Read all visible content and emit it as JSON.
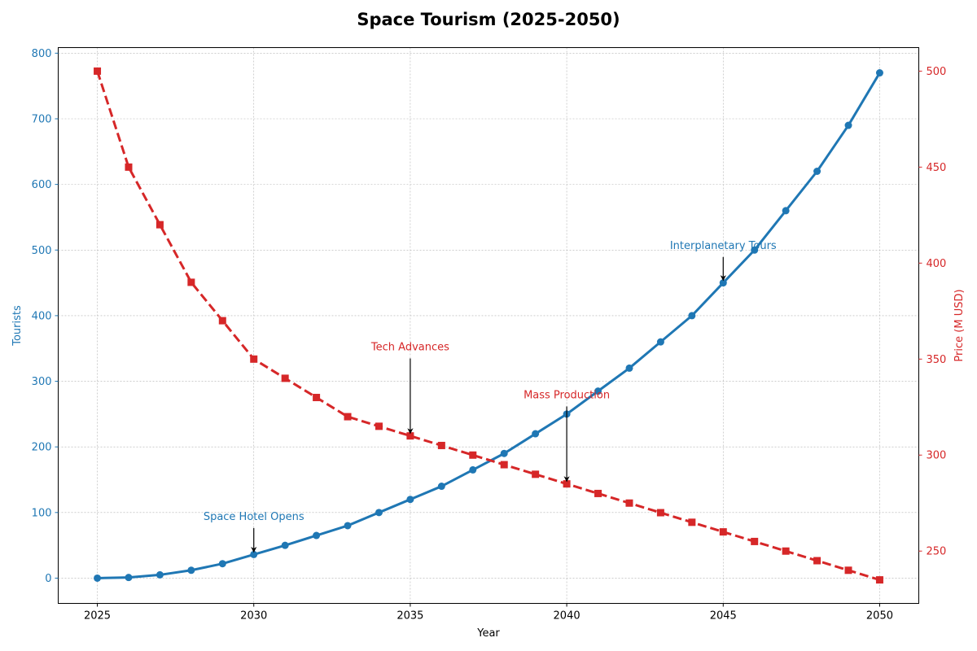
{
  "chart_data": {
    "type": "line",
    "title": "Space Tourism (2025-2050)",
    "xlabel": "Year",
    "ylabel_left": "Tourists",
    "ylabel_right": "Price (M USD)",
    "xlim": [
      2023.75,
      2051.25
    ],
    "ylim_left": [
      -38.5,
      808.5
    ],
    "ylim_right": [
      222.75,
      512.25
    ],
    "x_ticks": [
      2025,
      2030,
      2035,
      2040,
      2045,
      2050
    ],
    "y_left_ticks": [
      0,
      100,
      200,
      300,
      400,
      500,
      600,
      700,
      800
    ],
    "y_right_ticks": [
      250,
      300,
      350,
      400,
      450,
      500
    ],
    "grid": true,
    "colors": {
      "tourists": "#1f77b4",
      "price": "#d62728",
      "grid": "#b0b0b0"
    },
    "x": [
      2025,
      2026,
      2027,
      2028,
      2029,
      2030,
      2031,
      2032,
      2033,
      2034,
      2035,
      2036,
      2037,
      2038,
      2039,
      2040,
      2041,
      2042,
      2043,
      2044,
      2045,
      2046,
      2047,
      2048,
      2049,
      2050
    ],
    "series": [
      {
        "axis": "left",
        "color": "#1f77b4",
        "marker": "circle",
        "linestyle": "solid",
        "values": [
          0,
          1,
          5,
          12,
          22,
          36,
          50,
          65,
          80,
          100,
          120,
          140,
          165,
          190,
          220,
          250,
          285,
          320,
          360,
          400,
          450,
          500,
          560,
          620,
          690,
          770
        ]
      },
      {
        "axis": "right",
        "color": "#d62728",
        "marker": "square",
        "linestyle": "dashed",
        "values": [
          500,
          450,
          420,
          390,
          370,
          350,
          340,
          330,
          320,
          315,
          310,
          305,
          300,
          295,
          290,
          285,
          280,
          275,
          270,
          265,
          260,
          255,
          250,
          245,
          240,
          235
        ]
      }
    ],
    "annotations": [
      {
        "text": "Space Hotel Opens",
        "x": 2030,
        "y": 36,
        "axis": "left",
        "text_y": 90,
        "color": "#1f77b4"
      },
      {
        "text": "Tech Advances",
        "x": 2035,
        "y": 310,
        "axis": "right",
        "text_y": 355,
        "color": "#d62728"
      },
      {
        "text": "Mass Production",
        "x": 2040,
        "y": 285,
        "axis": "right",
        "text_y": 330,
        "color": "#d62728"
      },
      {
        "text": "Interplanetary Tours",
        "x": 2045,
        "y": 450,
        "axis": "left",
        "text_y": 503,
        "color": "#1f77b4"
      }
    ]
  }
}
